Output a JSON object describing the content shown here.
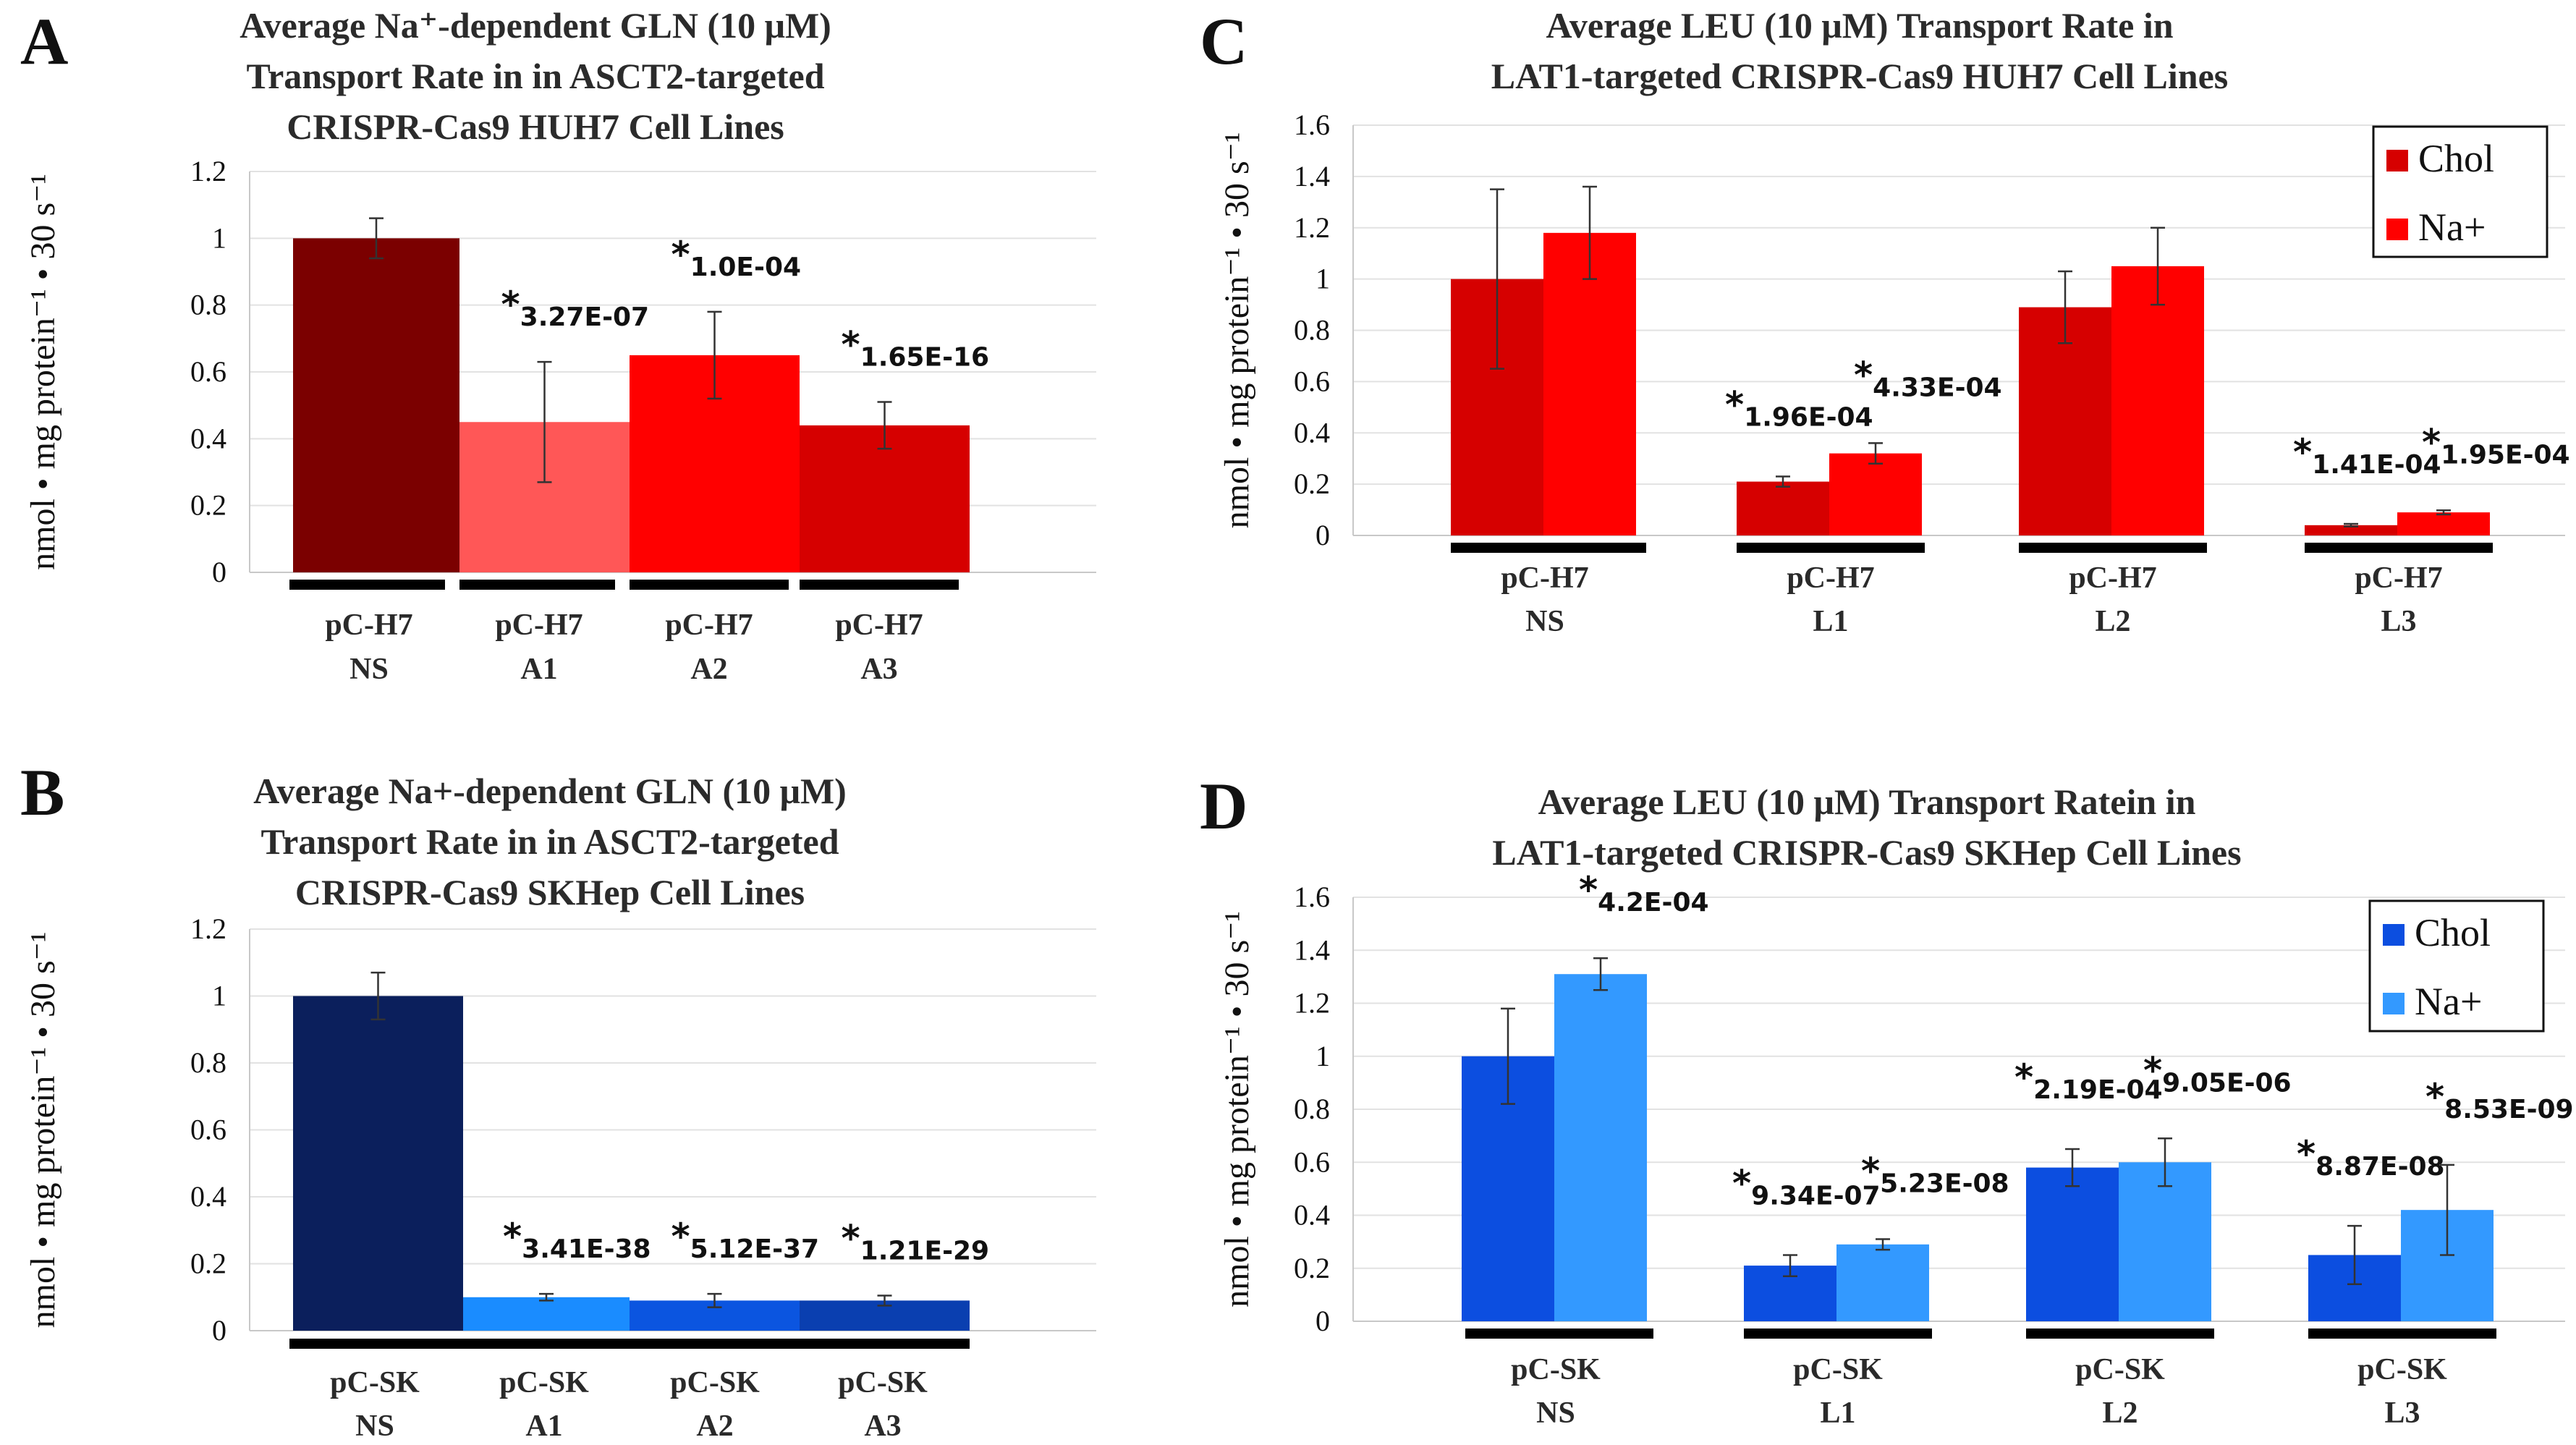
{
  "chart_data": [
    {
      "panel": "A",
      "type": "bar",
      "title_lines": [
        "Average Na⁺-dependent GLN (10 μM)",
        "Transport Rate in in ASCT2-targeted",
        "CRISPR-Cas9 HUH7 Cell Lines"
      ],
      "ylabel": "nmol • mg protein⁻¹ • 30 s⁻¹",
      "ylim": [
        0,
        1.2
      ],
      "yticks": [
        "0",
        "0.2",
        "0.4",
        "0.6",
        "0.8",
        "1",
        "1.2"
      ],
      "categories": [
        [
          "pC-H7",
          "NS"
        ],
        [
          "pC-H7",
          "A1"
        ],
        [
          "pC-H7",
          "A2"
        ],
        [
          "pC-H7",
          "A3"
        ]
      ],
      "values": [
        1.0,
        0.45,
        0.65,
        0.44
      ],
      "errors": [
        0.06,
        0.18,
        0.13,
        0.07
      ],
      "colors": [
        "#7b0000",
        "#ff5757",
        "#ff0000",
        "#d60000"
      ],
      "annotations": [
        "",
        "3.27E-07",
        "1.0E-04",
        "1.65E-16"
      ]
    },
    {
      "panel": "B",
      "type": "bar",
      "title_lines": [
        "Average Na+-dependent GLN (10 μM)",
        "Transport Rate in in ASCT2-targeted",
        "CRISPR-Cas9 SKHep Cell Lines"
      ],
      "ylabel": "nmol • mg protein⁻¹ • 30 s⁻¹",
      "ylim": [
        0,
        1.2
      ],
      "yticks": [
        "0",
        "0.2",
        "0.4",
        "0.6",
        "0.8",
        "1",
        "1.2"
      ],
      "categories": [
        [
          "pC-SK",
          "NS"
        ],
        [
          "pC-SK",
          "A1"
        ],
        [
          "pC-SK",
          "A2"
        ],
        [
          "pC-SK",
          "A3"
        ]
      ],
      "values": [
        1.0,
        0.1,
        0.09,
        0.09
      ],
      "errors": [
        0.07,
        0.01,
        0.02,
        0.015
      ],
      "colors": [
        "#0b1f5c",
        "#1a8cff",
        "#0b55e0",
        "#0a3fb0"
      ],
      "annotations": [
        "",
        "3.41E-38",
        "5.12E-37",
        "1.21E-29"
      ]
    },
    {
      "panel": "C",
      "type": "bar",
      "title_lines": [
        "Average LEU (10 μM) Transport Rate in",
        "LAT1-targeted CRISPR-Cas9 HUH7 Cell Lines"
      ],
      "ylabel": "nmol • mg protein⁻¹ • 30 s⁻¹",
      "ylim": [
        0,
        1.6
      ],
      "yticks": [
        "0",
        "0.2",
        "0.4",
        "0.6",
        "0.8",
        "1",
        "1.2",
        "1.4",
        "1.6"
      ],
      "categories": [
        [
          "pC-H7",
          "NS"
        ],
        [
          "pC-H7",
          "L1"
        ],
        [
          "pC-H7",
          "L2"
        ],
        [
          "pC-H7",
          "L3"
        ]
      ],
      "series": [
        {
          "name": "Chol",
          "color": "#d60000",
          "values": [
            1.0,
            0.21,
            0.89,
            0.04
          ],
          "errors": [
            0.35,
            0.02,
            0.14,
            0.005
          ],
          "annotations": [
            "",
            "1.96E-04",
            "",
            "1.41E-04"
          ]
        },
        {
          "name": "Na+",
          "color": "#ff0000",
          "values": [
            1.18,
            0.32,
            1.05,
            0.09
          ],
          "errors": [
            0.18,
            0.04,
            0.15,
            0.008
          ],
          "annotations": [
            "",
            "4.33E-04",
            "",
            "1.95E-04"
          ]
        }
      ],
      "legend": "top-right"
    },
    {
      "panel": "D",
      "type": "bar",
      "title_lines": [
        "Average LEU (10 μM) Transport Ratein in",
        "LAT1-targeted CRISPR-Cas9 SKHep Cell Lines"
      ],
      "ylabel": "nmol • mg protein⁻¹ • 30 s⁻¹",
      "ylim": [
        0,
        1.6
      ],
      "yticks": [
        "0",
        "0.2",
        "0.4",
        "0.6",
        "0.8",
        "1",
        "1.2",
        "1.4",
        "1.6"
      ],
      "categories": [
        [
          "pC-SK",
          "NS"
        ],
        [
          "pC-SK",
          "L1"
        ],
        [
          "pC-SK",
          "L2"
        ],
        [
          "pC-SK",
          "L3"
        ]
      ],
      "series": [
        {
          "name": "Chol",
          "color": "#0c4ee0",
          "values": [
            1.0,
            0.21,
            0.58,
            0.25
          ],
          "errors": [
            0.18,
            0.04,
            0.07,
            0.11
          ],
          "annotations": [
            "",
            "9.34E-07",
            "2.19E-04",
            "8.87E-08"
          ]
        },
        {
          "name": "Na+",
          "color": "#3399ff",
          "values": [
            1.31,
            0.29,
            0.6,
            0.42
          ],
          "errors": [
            0.06,
            0.02,
            0.09,
            0.17
          ],
          "annotations": [
            "4.2E-04",
            "5.23E-08",
            "9.05E-06",
            "8.53E-09"
          ]
        }
      ],
      "legend": "top-right"
    }
  ]
}
